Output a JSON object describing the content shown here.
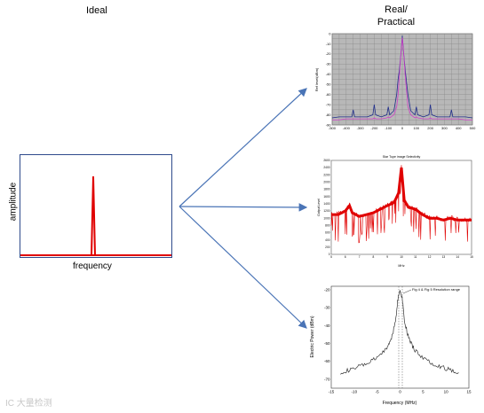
{
  "labels": {
    "ideal": "Ideal",
    "real": "Real/\nPractical",
    "ideal_ylabel": "amplitude",
    "ideal_xlabel": "frequency",
    "watermark": "IC 大量检测"
  },
  "colors": {
    "arrow": "#4a74b6",
    "ideal_spike": "#e00000",
    "plot1_grid_bg": "#b8b8b8",
    "plot1_series_a": "#1f2d8a",
    "plot1_series_b": "#d040c8",
    "plot2_trace": "#e00000",
    "plot3_trace": "#333333"
  },
  "chart_data": [
    {
      "type": "line",
      "id": "plot1",
      "x": [
        -500,
        -450,
        -400,
        -360,
        -350,
        -340,
        -300,
        -250,
        -210,
        -200,
        -190,
        -150,
        -110,
        -100,
        -90,
        -60,
        -40,
        -30,
        -20,
        -10,
        0,
        10,
        20,
        40,
        60,
        90,
        100,
        110,
        150,
        190,
        200,
        210,
        250,
        300,
        340,
        350,
        360,
        400,
        450,
        500
      ],
      "series": [
        {
          "values": [
            -83,
            -82,
            -82,
            -82,
            -75,
            -82,
            -82,
            -82,
            -80,
            -70,
            -80,
            -82,
            -80,
            -72,
            -80,
            -76,
            -60,
            -45,
            -35,
            -20,
            -2,
            -20,
            -35,
            -60,
            -76,
            -80,
            -72,
            -80,
            -82,
            -80,
            -70,
            -80,
            -82,
            -82,
            -82,
            -75,
            -82,
            -82,
            -82,
            -83
          ]
        },
        {
          "values": [
            -85,
            -85,
            -84,
            -84,
            -84,
            -84,
            -84,
            -84,
            -84,
            -83,
            -84,
            -84,
            -83,
            -82,
            -83,
            -80,
            -72,
            -60,
            -40,
            -20,
            -4,
            -20,
            -40,
            -72,
            -80,
            -83,
            -82,
            -83,
            -84,
            -84,
            -83,
            -84,
            -84,
            -84,
            -84,
            -84,
            -84,
            -84,
            -85,
            -85
          ]
        }
      ],
      "ylim": [
        -90,
        0
      ],
      "xlim": [
        -500,
        500
      ],
      "xticks": [
        "-500",
        "-400",
        "-300",
        "-200",
        "-100",
        "0",
        "100",
        "200",
        "300",
        "400",
        "500"
      ],
      "yticks": [
        "0",
        "-10",
        "-20",
        "-30",
        "-40",
        "-50",
        "-60",
        "-70",
        "-80",
        "-90"
      ],
      "ylabel": "Ref level(dBm)",
      "grid": true
    },
    {
      "type": "line",
      "id": "plot2",
      "title": "Star Tupe image Selectivity",
      "x": [
        5,
        5.5,
        6,
        6.3,
        6.5,
        7,
        7.5,
        8,
        8.5,
        9,
        9.3,
        9.5,
        9.8,
        10,
        10.2,
        10.5,
        11,
        11.5,
        12,
        12.5,
        13,
        13.5,
        14,
        14.5,
        15
      ],
      "values": [
        1100,
        1100,
        1200,
        1350,
        1150,
        1050,
        1100,
        1150,
        1250,
        1350,
        1400,
        1450,
        1700,
        2400,
        1500,
        1300,
        1250,
        1100,
        1000,
        1000,
        950,
        1000,
        950,
        950,
        950
      ],
      "ylim": [
        0,
        2600
      ],
      "xlim": [
        5,
        15
      ],
      "xticks": [
        "5",
        "6",
        "7",
        "8",
        "9",
        "10",
        "11",
        "12",
        "13",
        "14",
        "15"
      ],
      "yticks": [
        "0",
        "200",
        "400",
        "600",
        "800",
        "1000",
        "1200",
        "1400",
        "1600",
        "1800",
        "2000",
        "2200",
        "2400",
        "2600"
      ],
      "ylabel": "Output Level",
      "xlabel": "MHz"
    },
    {
      "type": "line",
      "id": "plot3",
      "x": [
        -13,
        -11,
        -9,
        -7,
        -5,
        -3,
        -2,
        -1,
        -0.5,
        0,
        0.5,
        1,
        2,
        3,
        5,
        7,
        9,
        11,
        13
      ],
      "values": [
        -66,
        -65,
        -63,
        -61,
        -58,
        -53,
        -48,
        -38,
        -25,
        -20,
        -25,
        -38,
        -48,
        -53,
        -58,
        -61,
        -63,
        -65,
        -66
      ],
      "ylim": [
        -75,
        -18
      ],
      "xlim": [
        -15,
        15
      ],
      "xticks": [
        "-15",
        "-10",
        "-5",
        "0",
        "5",
        "10",
        "15"
      ],
      "yticks": [
        "-20",
        "-30",
        "-40",
        "-50",
        "-60",
        "-70"
      ],
      "xlabel": "Frequency (MHz)",
      "ylabel": "Electric Power (dBm)",
      "annotation": "Fig 4 & Fig 5 Resolution range"
    }
  ]
}
